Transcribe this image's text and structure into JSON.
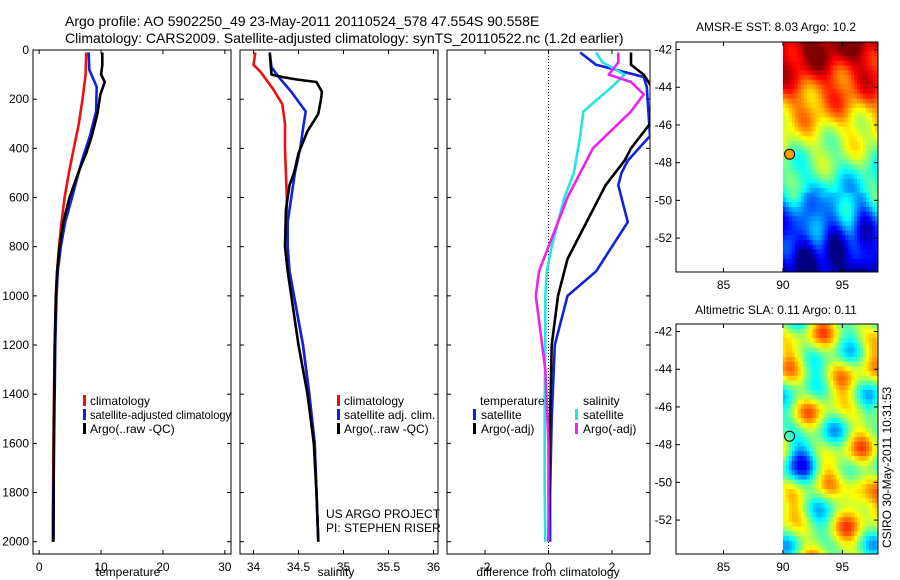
{
  "header": {
    "line1": "Argo profile: AO 5902250_49 23-May-2011 20110524_578 47.554S 90.558E",
    "line2": "Climatology: CARS2009. Satellite-adjusted climatology: synTS_20110522.nc (1.2d earlier)"
  },
  "colors": {
    "climatology": "#ee1111",
    "satellite": "#1122dd",
    "argo": "#000000",
    "sal_satellite": "#22e5e5",
    "sal_argo": "#ee22ee"
  },
  "chart_data": [
    {
      "id": "temperature",
      "type": "line",
      "xlabel": "temperature",
      "ylabel": "",
      "xlim": [
        -1,
        31
      ],
      "ylim": [
        2050,
        0
      ],
      "xticks": [
        0,
        10,
        20,
        30
      ],
      "yticks": [
        0,
        200,
        400,
        600,
        800,
        1000,
        1200,
        1400,
        1600,
        1800,
        2000
      ],
      "ytick_labels": [
        "0",
        "200",
        "400",
        "600",
        "800",
        "1000",
        "1200",
        "1400",
        "1600",
        "1800",
        "2000"
      ],
      "legend": [
        "climatology",
        "satellite-adjusted climatology",
        "Argo(..raw -QC)"
      ],
      "series": [
        {
          "name": "climatology",
          "color_key": "climatology",
          "x": [
            7.6,
            7.5,
            7.0,
            6.4,
            5.6,
            4.8,
            4.1,
            3.6,
            3.2,
            2.9,
            2.7,
            2.5,
            2.4,
            2.3,
            2.25,
            2.2,
            2.2,
            2.2
          ],
          "y": [
            10,
            100,
            200,
            300,
            400,
            500,
            600,
            700,
            800,
            900,
            1000,
            1200,
            1400,
            1600,
            1800,
            1900,
            1980,
            2000
          ]
        },
        {
          "name": "satellite-adjusted climatology",
          "color_key": "satellite",
          "x": [
            8.0,
            8.1,
            9.3,
            9.2,
            8.2,
            6.9,
            5.3,
            4.2,
            3.5,
            3.0,
            2.8,
            2.6,
            2.5,
            2.4,
            2.3,
            2.3,
            2.3
          ],
          "y": [
            10,
            80,
            150,
            250,
            350,
            450,
            600,
            700,
            800,
            900,
            1000,
            1200,
            1400,
            1600,
            1800,
            1900,
            2000
          ]
        },
        {
          "name": "Argo(..raw -QC)",
          "color_key": "argo",
          "x": [
            10.2,
            10.2,
            10.0,
            10.6,
            9.9,
            9.4,
            8.5,
            7.6,
            6.3,
            4.9,
            3.9,
            3.3,
            2.9,
            2.7,
            2.5,
            2.4,
            2.35,
            2.3
          ],
          "y": [
            10,
            60,
            100,
            130,
            180,
            260,
            350,
            420,
            500,
            600,
            700,
            800,
            900,
            1000,
            1200,
            1500,
            1800,
            2000
          ]
        }
      ]
    },
    {
      "id": "salinity",
      "type": "line",
      "xlabel": "salinity",
      "ylabel": "",
      "xlim": [
        33.85,
        36.05
      ],
      "ylim": [
        2050,
        0
      ],
      "xticks": [
        34,
        34.5,
        35,
        35.5,
        36
      ],
      "xtick_labels": [
        "34",
        "34.5",
        "35",
        "35.5",
        "36"
      ],
      "legend": [
        "climatology",
        "satellite adj. clim.",
        "Argo(..raw -QC)"
      ],
      "series": [
        {
          "name": "climatology",
          "color_key": "climatology",
          "x": [
            34.02,
            34.0,
            34.08,
            34.22,
            34.32,
            34.35,
            34.35,
            34.36,
            34.37,
            34.37,
            34.38,
            34.4,
            34.45,
            34.55,
            34.62,
            34.68,
            34.7,
            34.72
          ],
          "y": [
            10,
            60,
            90,
            160,
            220,
            300,
            400,
            500,
            600,
            700,
            800,
            900,
            1000,
            1200,
            1400,
            1600,
            1800,
            2000
          ]
        },
        {
          "name": "satellite adj. clim.",
          "color_key": "satellite",
          "x": [
            34.18,
            34.2,
            34.28,
            34.42,
            34.58,
            34.55,
            34.52,
            34.46,
            34.42,
            34.38,
            34.38,
            34.4,
            34.45,
            34.55,
            34.62,
            34.68,
            34.7,
            34.72
          ],
          "y": [
            10,
            70,
            110,
            170,
            250,
            320,
            400,
            500,
            600,
            700,
            800,
            900,
            1000,
            1200,
            1400,
            1600,
            1800,
            2000
          ]
        },
        {
          "name": "Argo(..raw -QC)",
          "color_key": "argo",
          "x": [
            34.18,
            34.2,
            34.32,
            34.48,
            34.7,
            34.76,
            34.75,
            34.72,
            34.6,
            34.5,
            34.45,
            34.4,
            34.36,
            34.35,
            34.38,
            34.42,
            34.5,
            34.6,
            34.67,
            34.7,
            34.72
          ],
          "y": [
            10,
            100,
            110,
            120,
            130,
            170,
            200,
            260,
            330,
            420,
            500,
            550,
            650,
            800,
            900,
            1000,
            1200,
            1400,
            1600,
            1800,
            2000
          ]
        }
      ]
    },
    {
      "id": "difference",
      "type": "line",
      "xlabel": "difference from climatology",
      "ylabel": "",
      "xlim": [
        -3.2,
        3.2
      ],
      "ylim": [
        2050,
        0
      ],
      "xticks": [
        -2,
        0,
        2
      ],
      "xtick_labels": [
        "-2",
        "0",
        "2"
      ],
      "legend_headers": [
        "temperature",
        "salinity"
      ],
      "legend": [
        "satellite",
        "Argo(-adj)",
        "satellite",
        "Argo(-adj)"
      ],
      "series": [
        {
          "name": "temperature satellite",
          "color_key": "satellite",
          "x": [
            1.0,
            1.5,
            3.0,
            3.1,
            3.2,
            2.5,
            2.3,
            2.2,
            2.4,
            2.5,
            2.0,
            1.5,
            0.6,
            0.2,
            0.1,
            0.05,
            0.05
          ],
          "y": [
            10,
            60,
            110,
            150,
            350,
            450,
            500,
            550,
            650,
            700,
            800,
            900,
            1000,
            1200,
            1500,
            1800,
            2000
          ]
        },
        {
          "name": "temperature Argo(-adj)",
          "color_key": "argo",
          "x": [
            2.6,
            2.6,
            3.0,
            3.3,
            3.2,
            2.6,
            2.4,
            1.8,
            1.4,
            1.0,
            0.6,
            0.3,
            0.1,
            0.05,
            0.0
          ],
          "y": [
            10,
            60,
            100,
            160,
            300,
            400,
            450,
            550,
            650,
            750,
            850,
            1000,
            1200,
            1500,
            2000
          ]
        },
        {
          "name": "salinity satellite",
          "color_key": "sal_satellite",
          "x": [
            1.5,
            1.7,
            2.4,
            2.0,
            1.1,
            1.0,
            0.8,
            0.5,
            0.1,
            -0.05,
            -0.1,
            -0.1,
            -0.12,
            -0.12,
            -0.12,
            -0.1
          ],
          "y": [
            10,
            50,
            100,
            150,
            250,
            350,
            500,
            600,
            800,
            900,
            1000,
            1200,
            1400,
            1600,
            1800,
            2000
          ]
        },
        {
          "name": "salinity Argo(-adj)",
          "color_key": "sal_argo",
          "x": [
            2.2,
            2.2,
            1.9,
            2.6,
            3.0,
            2.6,
            1.4,
            0.6,
            0.3,
            0.0,
            -0.3,
            -0.4,
            -0.3,
            -0.1,
            0.0,
            0.0
          ],
          "y": [
            10,
            50,
            100,
            130,
            180,
            250,
            400,
            600,
            700,
            800,
            900,
            1000,
            1100,
            1300,
            1600,
            2000
          ]
        }
      ]
    },
    {
      "id": "amsr_sst_map",
      "type": "heatmap",
      "title": "AMSR-E SST: 8.03 Argo: 10.2",
      "xlim": [
        81,
        98
      ],
      "ylim": [
        -53.8,
        -41.6
      ],
      "xticks": [
        85,
        90,
        95
      ],
      "yticks": [
        -42,
        -44,
        -46,
        -48,
        -50,
        -52
      ],
      "data_extent_lon": [
        90,
        98
      ],
      "marker": {
        "lon": 90.558,
        "lat": -47.554,
        "color": "#ff9900"
      }
    },
    {
      "id": "altimetric_sla_map",
      "type": "heatmap",
      "title": "Altimetric SLA: 0.11 Argo: 0.11",
      "xlim": [
        81,
        98
      ],
      "ylim": [
        -53.8,
        -41.6
      ],
      "xticks": [
        85,
        90,
        95
      ],
      "yticks": [
        -42,
        -44,
        -46,
        -48,
        -50,
        -52
      ],
      "data_extent_lon": [
        90,
        98
      ],
      "marker": {
        "lon": 90.558,
        "lat": -47.554,
        "color": "none"
      }
    }
  ],
  "credits": {
    "project": "US ARGO PROJECT",
    "pi": "PI: STEPHEN RISER",
    "stamp": "CSIRO 30-May-2011 10:31:53"
  }
}
